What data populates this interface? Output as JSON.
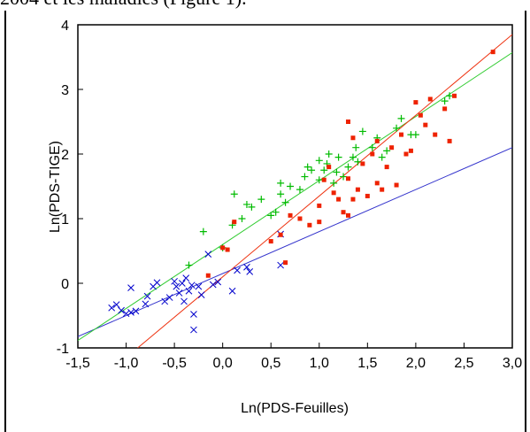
{
  "caption_fragment": "2004 et les maladies (Figure 1).",
  "chart_data": {
    "type": "scatter",
    "title": "",
    "xlabel": "Ln(PDS-Feuilles)",
    "ylabel": "Ln(PDS-TIGE)",
    "xlim": [
      -1.5,
      3.0
    ],
    "ylim": [
      -1,
      4
    ],
    "x_ticks": [
      "-1,5",
      "-1,0",
      "-0,5",
      "0,0",
      "0,5",
      "1,0",
      "1,5",
      "2,0",
      "2,5",
      "3,0"
    ],
    "y_ticks": [
      "-1",
      "0",
      "1",
      "2",
      "3",
      "4"
    ],
    "grid": false,
    "series": [
      {
        "marker": "cross",
        "color": "#0000cc",
        "line_color": "#3333cc",
        "fit": {
          "slope": 0.65,
          "intercept": 0.15
        },
        "points": [
          [
            -1.15,
            -0.38
          ],
          [
            -1.1,
            -0.33
          ],
          [
            -1.05,
            -0.42
          ],
          [
            -1.0,
            -0.47
          ],
          [
            -0.95,
            -0.07
          ],
          [
            -0.95,
            -0.45
          ],
          [
            -0.9,
            -0.43
          ],
          [
            -0.8,
            -0.32
          ],
          [
            -0.78,
            -0.2
          ],
          [
            -0.72,
            -0.05
          ],
          [
            -0.68,
            0.01
          ],
          [
            -0.6,
            -0.28
          ],
          [
            -0.55,
            -0.22
          ],
          [
            -0.5,
            0.03
          ],
          [
            -0.48,
            -0.05
          ],
          [
            -0.45,
            -0.15
          ],
          [
            -0.42,
            0.0
          ],
          [
            -0.4,
            -0.28
          ],
          [
            -0.38,
            0.08
          ],
          [
            -0.35,
            -0.12
          ],
          [
            -0.32,
            -0.03
          ],
          [
            -0.3,
            -0.48
          ],
          [
            -0.3,
            -0.72
          ],
          [
            -0.25,
            -0.05
          ],
          [
            -0.22,
            -0.18
          ],
          [
            -0.15,
            0.45
          ],
          [
            -0.1,
            -0.02
          ],
          [
            -0.05,
            0.02
          ],
          [
            0.1,
            -0.12
          ],
          [
            0.15,
            0.2
          ],
          [
            0.25,
            0.25
          ],
          [
            0.28,
            0.18
          ],
          [
            0.6,
            0.28
          ],
          [
            0.6,
            0.76
          ]
        ]
      },
      {
        "marker": "plus",
        "color": "#00bb00",
        "line_color": "#33cc33",
        "fit": {
          "slope": 0.99,
          "intercept": 0.6
        },
        "points": [
          [
            -0.35,
            0.28
          ],
          [
            -0.2,
            0.8
          ],
          [
            0.0,
            0.55
          ],
          [
            0.1,
            0.9
          ],
          [
            0.12,
            1.38
          ],
          [
            0.2,
            1.0
          ],
          [
            0.25,
            1.22
          ],
          [
            0.3,
            1.18
          ],
          [
            0.4,
            1.3
          ],
          [
            0.5,
            1.05
          ],
          [
            0.55,
            1.1
          ],
          [
            0.6,
            1.38
          ],
          [
            0.6,
            1.55
          ],
          [
            0.65,
            1.25
          ],
          [
            0.7,
            1.5
          ],
          [
            0.8,
            1.45
          ],
          [
            0.85,
            1.65
          ],
          [
            0.88,
            1.8
          ],
          [
            0.92,
            1.75
          ],
          [
            1.0,
            1.9
          ],
          [
            1.0,
            1.6
          ],
          [
            1.05,
            1.75
          ],
          [
            1.08,
            1.85
          ],
          [
            1.1,
            2.0
          ],
          [
            1.15,
            1.55
          ],
          [
            1.18,
            1.72
          ],
          [
            1.2,
            1.95
          ],
          [
            1.25,
            1.65
          ],
          [
            1.3,
            1.8
          ],
          [
            1.35,
            1.95
          ],
          [
            1.38,
            2.1
          ],
          [
            1.4,
            1.88
          ],
          [
            1.45,
            2.35
          ],
          [
            1.55,
            2.1
          ],
          [
            1.6,
            2.25
          ],
          [
            1.65,
            1.95
          ],
          [
            1.7,
            2.05
          ],
          [
            1.8,
            2.4
          ],
          [
            1.85,
            2.55
          ],
          [
            1.95,
            2.3
          ],
          [
            2.0,
            2.3
          ],
          [
            2.3,
            2.82
          ],
          [
            2.35,
            2.9
          ]
        ]
      },
      {
        "marker": "square",
        "color": "#ee2200",
        "line_color": "#ee3311",
        "fit": {
          "slope": 1.25,
          "intercept": 0.1
        },
        "points": [
          [
            -0.15,
            0.12
          ],
          [
            0.12,
            0.95
          ],
          [
            0.0,
            0.55
          ],
          [
            0.05,
            0.52
          ],
          [
            0.5,
            0.65
          ],
          [
            0.6,
            0.75
          ],
          [
            0.65,
            0.32
          ],
          [
            0.7,
            1.05
          ],
          [
            0.8,
            1.0
          ],
          [
            0.9,
            0.9
          ],
          [
            1.0,
            1.2
          ],
          [
            1.0,
            0.95
          ],
          [
            1.05,
            1.6
          ],
          [
            1.1,
            1.8
          ],
          [
            1.15,
            1.4
          ],
          [
            1.2,
            1.3
          ],
          [
            1.25,
            1.1
          ],
          [
            1.3,
            1.05
          ],
          [
            1.3,
            1.62
          ],
          [
            1.35,
            1.3
          ],
          [
            1.4,
            1.45
          ],
          [
            1.45,
            1.85
          ],
          [
            1.5,
            1.35
          ],
          [
            1.55,
            2.0
          ],
          [
            1.6,
            1.55
          ],
          [
            1.6,
            2.2
          ],
          [
            1.65,
            1.45
          ],
          [
            1.7,
            1.8
          ],
          [
            1.75,
            2.1
          ],
          [
            1.8,
            1.52
          ],
          [
            1.85,
            2.3
          ],
          [
            1.9,
            2.0
          ],
          [
            1.95,
            2.05
          ],
          [
            2.0,
            2.8
          ],
          [
            2.05,
            2.6
          ],
          [
            2.1,
            2.45
          ],
          [
            2.15,
            2.85
          ],
          [
            2.2,
            2.3
          ],
          [
            2.3,
            2.7
          ],
          [
            2.35,
            2.2
          ],
          [
            2.4,
            2.9
          ],
          [
            2.8,
            3.58
          ],
          [
            1.3,
            2.5
          ],
          [
            1.35,
            2.25
          ]
        ]
      }
    ]
  }
}
